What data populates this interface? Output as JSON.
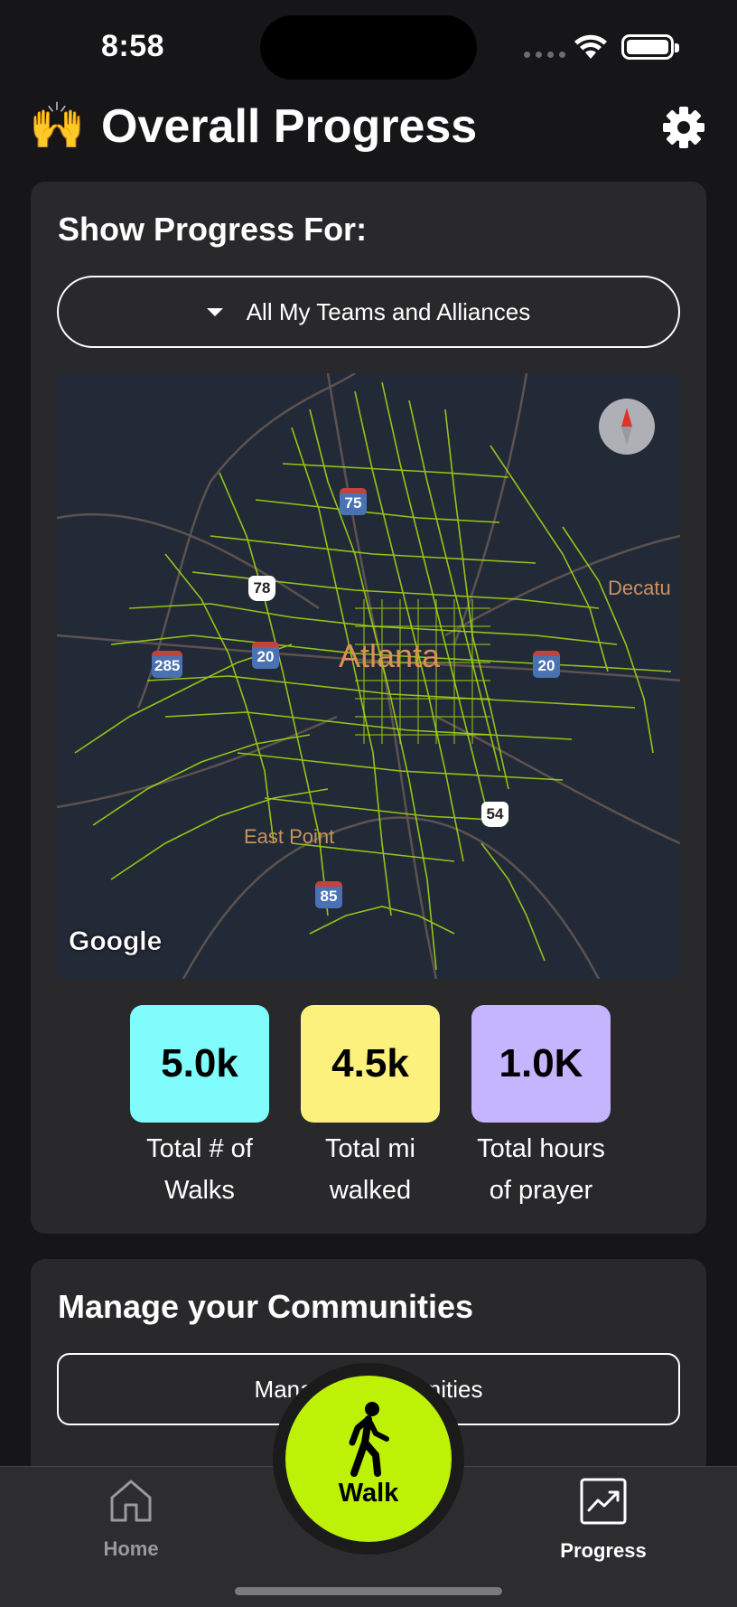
{
  "status_bar": {
    "time": "8:58"
  },
  "header": {
    "emoji": "🙌",
    "title": "Overall Progress"
  },
  "progress_card": {
    "title": "Show Progress For:",
    "dropdown": {
      "selected": "All My Teams and Alliances"
    },
    "map": {
      "city_label": "Atlanta",
      "labels": [
        "Decatu",
        "East Point"
      ],
      "shields": [
        "75",
        "78",
        "285",
        "20",
        "20",
        "54",
        "85"
      ],
      "attribution": "Google"
    },
    "stats": [
      {
        "value": "5.0k",
        "label_line1": "Total # of",
        "label_line2": "Walks",
        "color": "#80fcfc"
      },
      {
        "value": "4.5k",
        "label_line1": "Total mi",
        "label_line2": "walked",
        "color": "#fdf17e"
      },
      {
        "value": "1.0K",
        "label_line1": "Total hours",
        "label_line2": "of prayer",
        "color": "#c5b4ff"
      }
    ]
  },
  "communities_card": {
    "title": "Manage your Communities",
    "button_label": "Manage Communities"
  },
  "tab_bar": {
    "home": "Home",
    "walk": "Walk",
    "progress": "Progress"
  },
  "colors": {
    "background": "#161618",
    "card": "#29292b",
    "accent": "#bdf106",
    "route": "#a8e010"
  }
}
